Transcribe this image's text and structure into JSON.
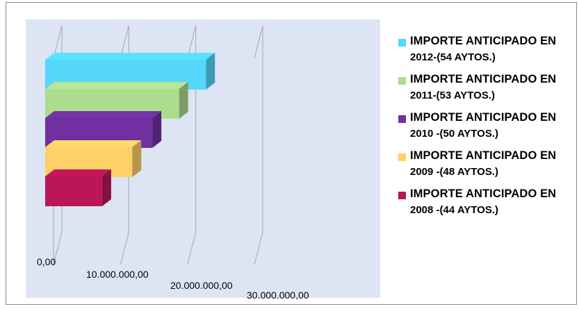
{
  "chart_data": {
    "type": "bar",
    "orientation": "horizontal",
    "style": "3d",
    "categories": [
      "IMPORTE ANTICIPADO EN 2012-(54 AYTOS.)",
      "IMPORTE ANTICIPADO EN 2011-(53 AYTOS.)",
      "IMPORTE ANTICIPADO EN 2010 -(50 AYTOS.)",
      "IMPORTE ANTICIPADO EN 2009 -(48 AYTOS.)",
      "IMPORTE ANTICIPADO EN 2008 -(44 AYTOS.)"
    ],
    "values": [
      24000000,
      20000000,
      16000000,
      13000000,
      8500000
    ],
    "colors": [
      "#55d7fb",
      "#acdc8d",
      "#7030a0",
      "#ffd066",
      "#ba1658"
    ],
    "xlim": [
      0,
      30000000
    ],
    "x_ticks": [
      "0,00",
      "10.000.000,00",
      "20.000.000,00",
      "30.000.000,00"
    ],
    "grid": true,
    "legend_position": "right",
    "legend": [
      {
        "line1": "IMPORTE ANTICIPADO EN",
        "line2": "2012-(54 AYTOS.)",
        "color": "#55d7fb"
      },
      {
        "line1": "IMPORTE ANTICIPADO EN",
        "line2": "2011-(53 AYTOS.)",
        "color": "#acdc8d"
      },
      {
        "line1": "IMPORTE ANTICIPADO EN",
        "line2": "2010 -(50 AYTOS.)",
        "color": "#7030a0"
      },
      {
        "line1": "IMPORTE ANTICIPADO EN",
        "line2": "2009 -(48 AYTOS.)",
        "color": "#ffd066"
      },
      {
        "line1": "IMPORTE ANTICIPADO EN",
        "line2": "2008 -(44 AYTOS.)",
        "color": "#ba1658"
      }
    ]
  }
}
